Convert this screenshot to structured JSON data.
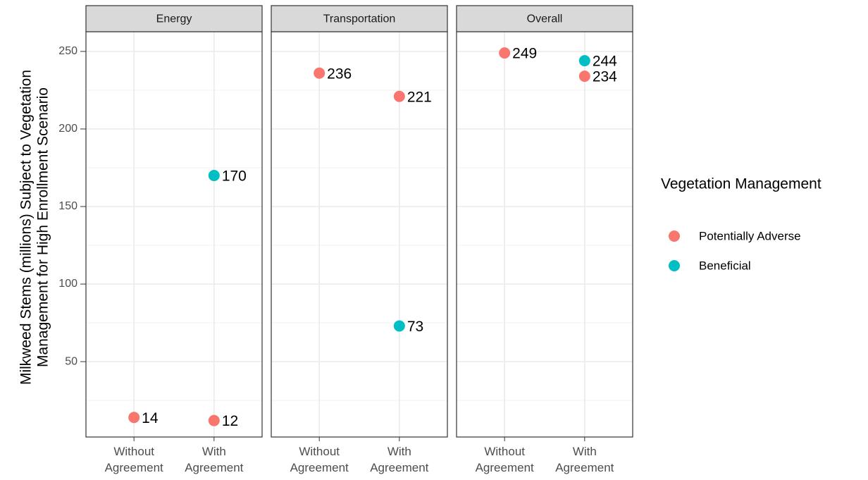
{
  "chart_data": {
    "type": "dot",
    "y_label": [
      "Milkweed Stems (millions) Subject to Vegetation",
      "Management for High Enrollment Scenario"
    ],
    "legend_title": "Vegetation Management",
    "categories": [
      "Without Agreement",
      "With Agreement"
    ],
    "series": [
      {
        "name": "Potentially Adverse",
        "color": "#F8766D"
      },
      {
        "name": "Beneficial",
        "color": "#00BFC4"
      }
    ],
    "panels": [
      {
        "title": "Energy",
        "values": [
          [
            14,
            12
          ],
          [
            null,
            170
          ]
        ]
      },
      {
        "title": "Transportation",
        "values": [
          [
            236,
            221
          ],
          [
            null,
            73
          ]
        ]
      },
      {
        "title": "Overall",
        "values": [
          [
            249,
            234
          ],
          [
            null,
            244
          ]
        ]
      }
    ],
    "ylim": [
      1.4,
      262.7
    ],
    "yticks": [
      50,
      100,
      150,
      200,
      250
    ],
    "y_minor_ticks": [
      25,
      75,
      125,
      175,
      225
    ],
    "grid": true
  }
}
